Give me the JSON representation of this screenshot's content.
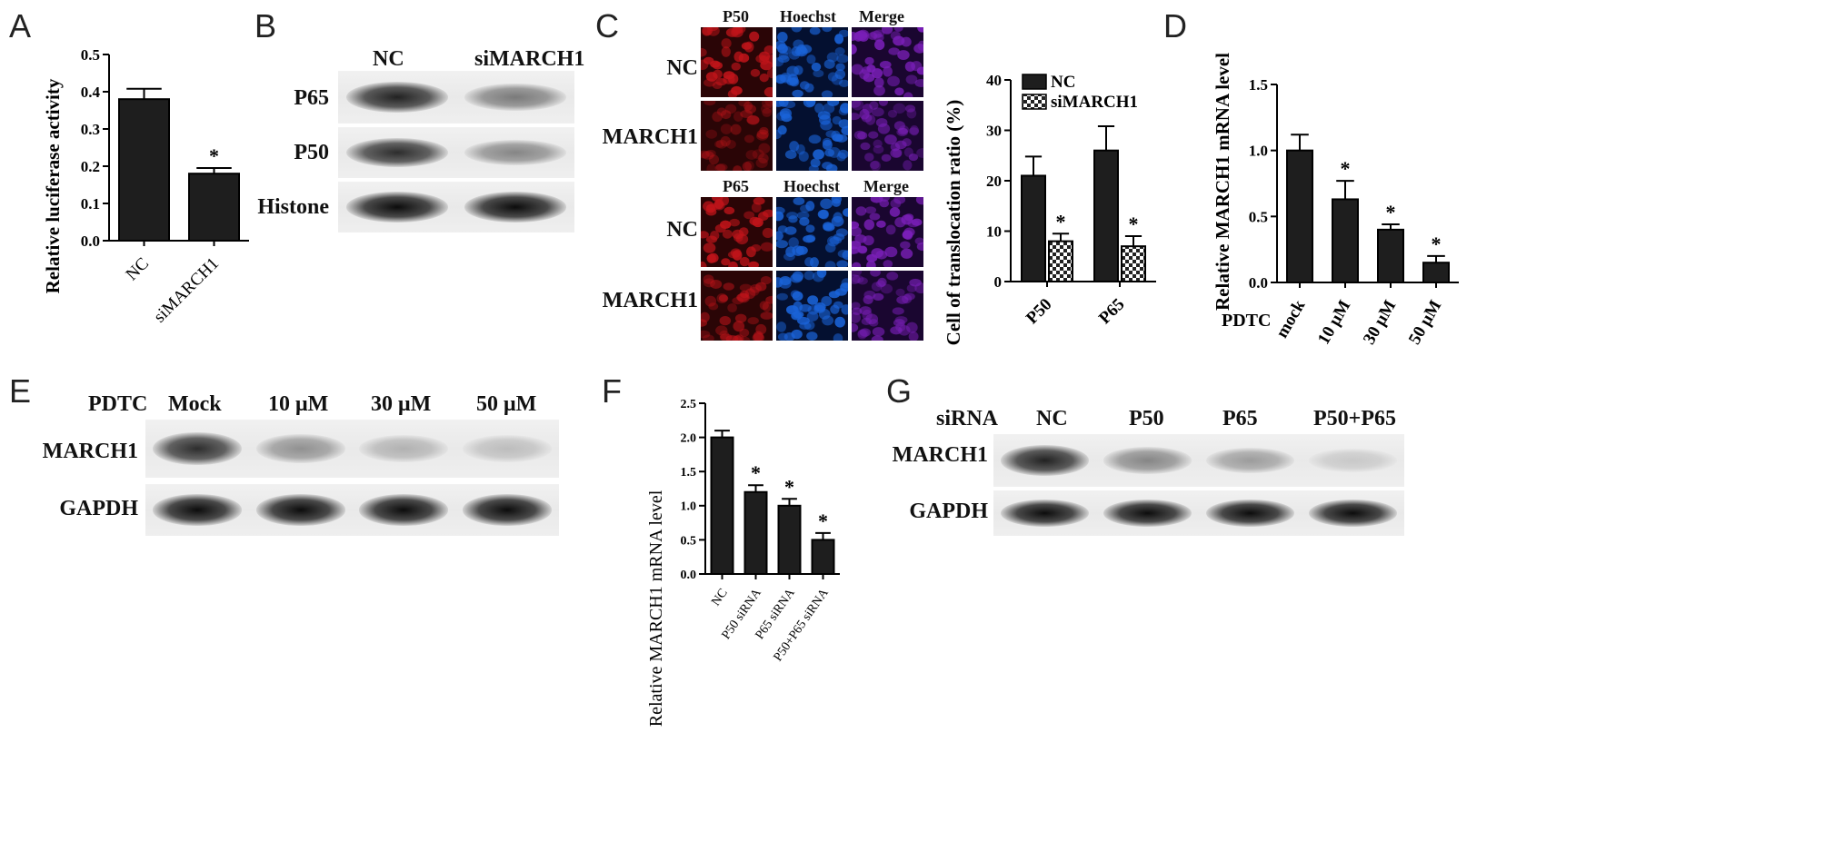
{
  "panels": {
    "A": "A",
    "B": "B",
    "C": "C",
    "D": "D",
    "E": "E",
    "F": "F",
    "G": "G"
  },
  "chart_data": [
    {
      "id": "A",
      "type": "bar",
      "categories": [
        "NC",
        "siMARCH1"
      ],
      "values": [
        0.38,
        0.18
      ],
      "errors": [
        0.028,
        0.015
      ],
      "significance": [
        "",
        "*"
      ],
      "ylabel": "Relative luciferase activity",
      "ylim": [
        0,
        0.5
      ],
      "yticks": [
        "0.0",
        "0.1",
        "0.2",
        "0.3",
        "0.4",
        "0.5"
      ]
    },
    {
      "id": "C",
      "type": "bar",
      "categories": [
        "P50",
        "P65"
      ],
      "series": [
        {
          "name": "NC",
          "values": [
            21,
            26
          ],
          "errors": [
            3.8,
            4.8
          ],
          "significance": [
            "",
            ""
          ]
        },
        {
          "name": "siMARCH1",
          "values": [
            8,
            7
          ],
          "errors": [
            1.5,
            2.0
          ],
          "significance": [
            "*",
            "*"
          ]
        }
      ],
      "ylabel": "Cell of translocation ratio (%)",
      "ylim": [
        0,
        40
      ],
      "yticks": [
        "0",
        "10",
        "20",
        "30",
        "40"
      ],
      "legend": "top-right"
    },
    {
      "id": "D",
      "type": "bar",
      "categories": [
        "mock",
        "10 μM",
        "30 μM",
        "50 μM"
      ],
      "values": [
        1.0,
        0.63,
        0.4,
        0.15
      ],
      "errors": [
        0.12,
        0.14,
        0.04,
        0.05
      ],
      "significance": [
        "",
        "*",
        "*",
        "*"
      ],
      "ylabel": "Relative MARCH1 mRNA level",
      "xprefix": "PDTC",
      "ylim": [
        0,
        1.5
      ],
      "yticks": [
        "0.0",
        "0.5",
        "1.0",
        "1.5"
      ]
    },
    {
      "id": "F",
      "type": "bar",
      "categories": [
        "NC",
        "P50 siRNA",
        "P65 siRNA",
        "P50+P65 siRNA"
      ],
      "values": [
        2.0,
        1.2,
        1.0,
        0.5
      ],
      "errors": [
        0.1,
        0.1,
        0.1,
        0.1
      ],
      "significance": [
        "",
        "*",
        "*",
        "*"
      ],
      "ylabel": "Relative MARCH1 mRNA level",
      "ylim": [
        0,
        2.5
      ],
      "yticks": [
        "0.0",
        "0.5",
        "1.0",
        "1.5",
        "2.0",
        "2.5"
      ]
    }
  ],
  "blot_B": {
    "cols": [
      "NC",
      "siMARCH1"
    ],
    "rows": [
      "P65",
      "P50",
      "Histone"
    ],
    "intensity": [
      [
        0.9,
        0.5
      ],
      [
        0.85,
        0.45
      ],
      [
        1.0,
        1.0
      ]
    ]
  },
  "micro_C": {
    "cols_top": [
      "P50",
      "Hoechst",
      "Merge"
    ],
    "cols_bottom": [
      "P65",
      "Hoechst",
      "Merge"
    ],
    "rows": [
      "NC",
      "MARCH1",
      "NC",
      "MARCH1"
    ]
  },
  "blot_E": {
    "header": "PDTC",
    "cols": [
      "Mock",
      "10 μM",
      "30 μM",
      "50 μM"
    ],
    "rows": [
      "MARCH1",
      "GAPDH"
    ],
    "intensity": [
      [
        0.85,
        0.4,
        0.25,
        0.2
      ],
      [
        1.0,
        1.0,
        1.0,
        1.0
      ]
    ]
  },
  "blot_G": {
    "header": "siRNA",
    "cols": [
      "NC",
      "P50",
      "P65",
      "P50+P65"
    ],
    "rows": [
      "MARCH1",
      "GAPDH"
    ],
    "intensity": [
      [
        0.9,
        0.45,
        0.35,
        0.15
      ],
      [
        1.0,
        1.0,
        1.0,
        1.0
      ]
    ]
  },
  "colors": {
    "bar_dark": "#1e1e1e",
    "band": "#0d0d0d",
    "red": "#c0141a",
    "blue": "#1a63d8",
    "merge": "#7a1fb8"
  }
}
